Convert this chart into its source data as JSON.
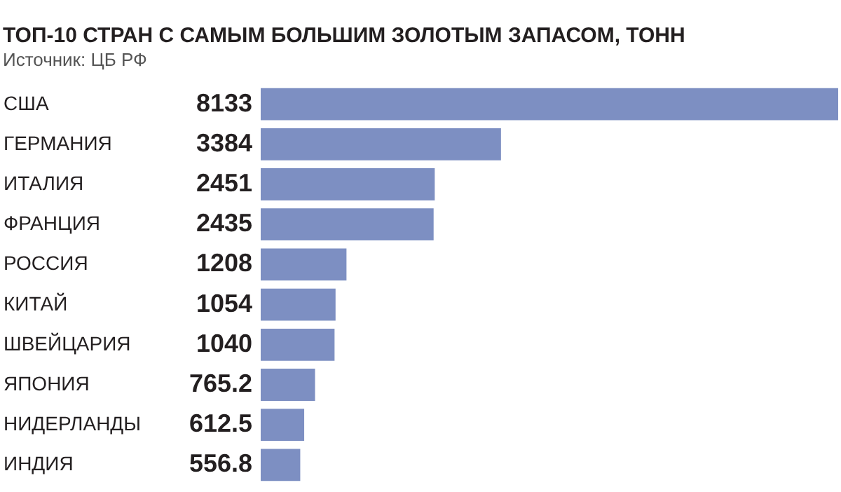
{
  "chart_data": {
    "type": "bar",
    "orientation": "horizontal",
    "title": "ТОП-10 СТРАН С САМЫМ БОЛЬШИМ ЗОЛОТЫМ ЗАПАСОМ, ТОНН",
    "annotations": [
      "Источник: ЦБ РФ"
    ],
    "categories": [
      "США",
      "ГЕРМАНИЯ",
      "ИТАЛИЯ",
      "ФРАНЦИЯ",
      "РОССИЯ",
      "КИТАЙ",
      "ШВЕЙЦАРИЯ",
      "ЯПОНИЯ",
      "НИДЕРЛАНДЫ",
      "ИНДИЯ"
    ],
    "values": [
      8133,
      3384,
      2451,
      2435,
      1208,
      1054,
      1040,
      765.2,
      612.5,
      556.8
    ],
    "color": "#7d8fc2",
    "data_labels": true,
    "grid": false
  }
}
